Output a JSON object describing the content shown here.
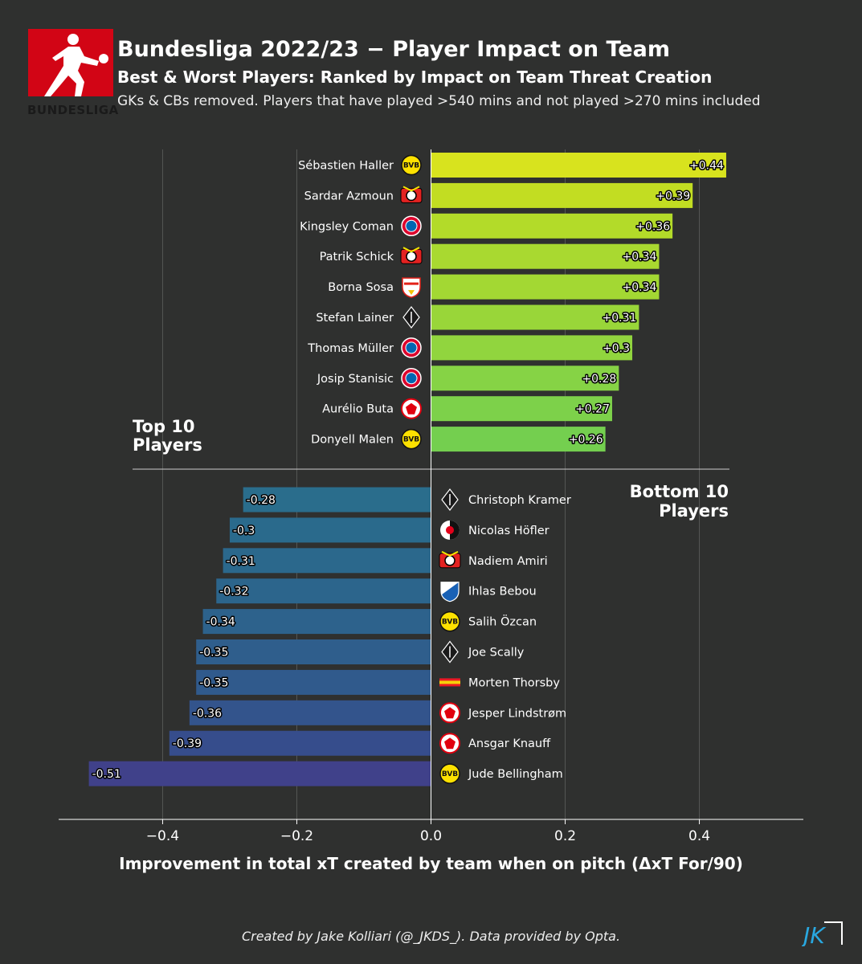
{
  "header": {
    "logo_text": "BUNDESLIGA",
    "title": "Bundesliga 2022/23 − Player Impact on Team",
    "subtitle": "Best & Worst Players: Ranked by Impact on Team Threat Creation",
    "note": "GKs & CBs removed. Players that have played  >540 mins and not played >270 mins included"
  },
  "footer": {
    "credit": "Created by Jake Kolliari (@_JKDS_). Data provided by Opta.",
    "mark": "JK"
  },
  "colors": {
    "background": "#2f302f",
    "bundesliga_red": "#d20515"
  },
  "chart_data": {
    "type": "bar",
    "orientation": "horizontal",
    "xlabel": "Improvement in total xT created by team when on pitch (ΔxT For/90)",
    "xlim": [
      -0.555,
      0.555
    ],
    "xticks": [
      -0.4,
      -0.2,
      0.0,
      0.2,
      0.4
    ],
    "xtick_labels": [
      "−0.4",
      "−0.2",
      "0.0",
      "0.2",
      "0.4"
    ],
    "grid": true,
    "top_group": {
      "label_line1": "Top 10",
      "label_line2": "Players",
      "players": [
        {
          "name": "Sébastien Haller",
          "club": "bvb",
          "value": 0.44,
          "label": "+0.44",
          "color": "#d8e31e"
        },
        {
          "name": "Sardar Azmoun",
          "club": "b04",
          "value": 0.39,
          "label": "+0.39",
          "color": "#c2dd22"
        },
        {
          "name": "Kingsley Coman",
          "club": "fcb",
          "value": 0.36,
          "label": "+0.36",
          "color": "#b3db29"
        },
        {
          "name": "Patrik Schick",
          "club": "b04",
          "value": 0.34,
          "label": "+0.34",
          "color": "#a9d930"
        },
        {
          "name": "Borna Sosa",
          "club": "vfb",
          "value": 0.34,
          "label": "+0.34",
          "color": "#a3d833"
        },
        {
          "name": "Stefan Lainer",
          "club": "bmg",
          "value": 0.31,
          "label": "+0.31",
          "color": "#99d639"
        },
        {
          "name": "Thomas Müller",
          "club": "fcb",
          "value": 0.3,
          "label": "+0.3",
          "color": "#91d53e"
        },
        {
          "name": "Josip Stanisic",
          "club": "fcb",
          "value": 0.28,
          "label": "+0.28",
          "color": "#86d345"
        },
        {
          "name": "Aurélio Buta",
          "club": "sge",
          "value": 0.27,
          "label": "+0.27",
          "color": "#7dd14a"
        },
        {
          "name": "Donyell Malen",
          "club": "bvb",
          "value": 0.26,
          "label": "+0.26",
          "color": "#74cf4f"
        }
      ]
    },
    "bottom_group": {
      "label_line1": "Bottom 10",
      "label_line2": "Players",
      "players": [
        {
          "name": "Christoph Kramer",
          "club": "bmg",
          "value": -0.28,
          "label": "-0.28",
          "color": "#2a6d8c"
        },
        {
          "name": "Nicolas Höfler",
          "club": "scf",
          "value": -0.3,
          "label": "-0.3",
          "color": "#2a6a8c"
        },
        {
          "name": "Nadiem Amiri",
          "club": "b04",
          "value": -0.31,
          "label": "-0.31",
          "color": "#2b688c"
        },
        {
          "name": "Ihlas Bebou",
          "club": "tsg",
          "value": -0.32,
          "label": "-0.32",
          "color": "#2c658c"
        },
        {
          "name": "Salih Özcan",
          "club": "bvb",
          "value": -0.34,
          "label": "-0.34",
          "color": "#2d628c"
        },
        {
          "name": "Joe Scally",
          "club": "bmg",
          "value": -0.35,
          "label": "-0.35",
          "color": "#2f5e8c"
        },
        {
          "name": "Morten Thorsby",
          "club": "fcu",
          "value": -0.35,
          "label": "-0.35",
          "color": "#305a8c"
        },
        {
          "name": "Jesper Lindstrøm",
          "club": "sge",
          "value": -0.36,
          "label": "-0.36",
          "color": "#33548c"
        },
        {
          "name": "Ansgar Knauff",
          "club": "sge",
          "value": -0.39,
          "label": "-0.39",
          "color": "#364d8c"
        },
        {
          "name": "Jude Bellingham",
          "club": "bvb",
          "value": -0.51,
          "label": "-0.51",
          "color": "#40418a"
        }
      ]
    }
  }
}
